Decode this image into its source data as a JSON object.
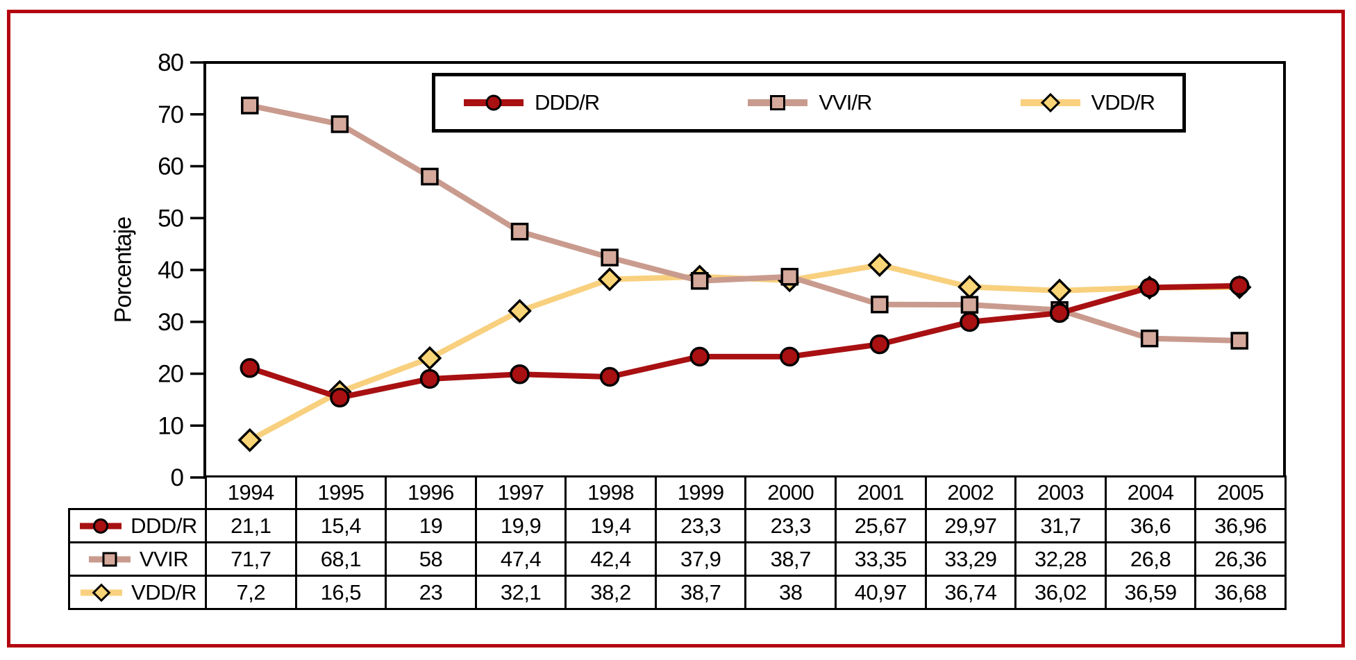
{
  "frame": {
    "border_color": "#b30510"
  },
  "chart_data": {
    "type": "line",
    "title": "",
    "xlabel": "",
    "ylabel": "Porcentaje",
    "ylim": [
      0,
      80
    ],
    "ytick_step": 10,
    "yticks": [
      "0",
      "10",
      "20",
      "30",
      "40",
      "50",
      "60",
      "70",
      "80"
    ],
    "grid": false,
    "legend_position": "top-center-boxed",
    "categories": [
      "1994",
      "1995",
      "1996",
      "1997",
      "1998",
      "1999",
      "2000",
      "2001",
      "2002",
      "2003",
      "2004",
      "2005"
    ],
    "series": [
      {
        "name": "DDD/R",
        "table_label": "DDD/R",
        "marker": "circle",
        "line_color": "#a81012",
        "marker_fill": "#a81012",
        "values": [
          21.1,
          15.4,
          19,
          19.9,
          19.4,
          23.3,
          23.3,
          25.67,
          29.97,
          31.7,
          36.6,
          36.96
        ],
        "display_values": [
          "21,1",
          "15,4",
          "19",
          "19,9",
          "19,4",
          "23,3",
          "23,3",
          "25,67",
          "29,97",
          "31,7",
          "36,6",
          "36,96"
        ]
      },
      {
        "name": "VVI/R",
        "table_label": "VVIR",
        "marker": "square",
        "line_color": "#c99b8e",
        "marker_fill": "#d5a99b",
        "values": [
          71.7,
          68.1,
          58,
          47.4,
          42.4,
          37.9,
          38.7,
          33.35,
          33.29,
          32.28,
          26.8,
          26.36
        ],
        "display_values": [
          "71,7",
          "68,1",
          "58",
          "47,4",
          "42,4",
          "37,9",
          "38,7",
          "33,35",
          "33,29",
          "32,28",
          "26,8",
          "26,36"
        ]
      },
      {
        "name": "VDD/R",
        "table_label": "VDD/R",
        "marker": "diamond",
        "line_color": "#f8d07e",
        "marker_fill": "#f9d577",
        "values": [
          7.2,
          16.5,
          23,
          32.1,
          38.2,
          38.7,
          38,
          40.97,
          36.74,
          36.02,
          36.59,
          36.68
        ],
        "display_values": [
          "7,2",
          "16,5",
          "23",
          "32,1",
          "38,2",
          "38,7",
          "38",
          "40,97",
          "36,74",
          "36,02",
          "36,59",
          "36,68"
        ]
      }
    ]
  }
}
